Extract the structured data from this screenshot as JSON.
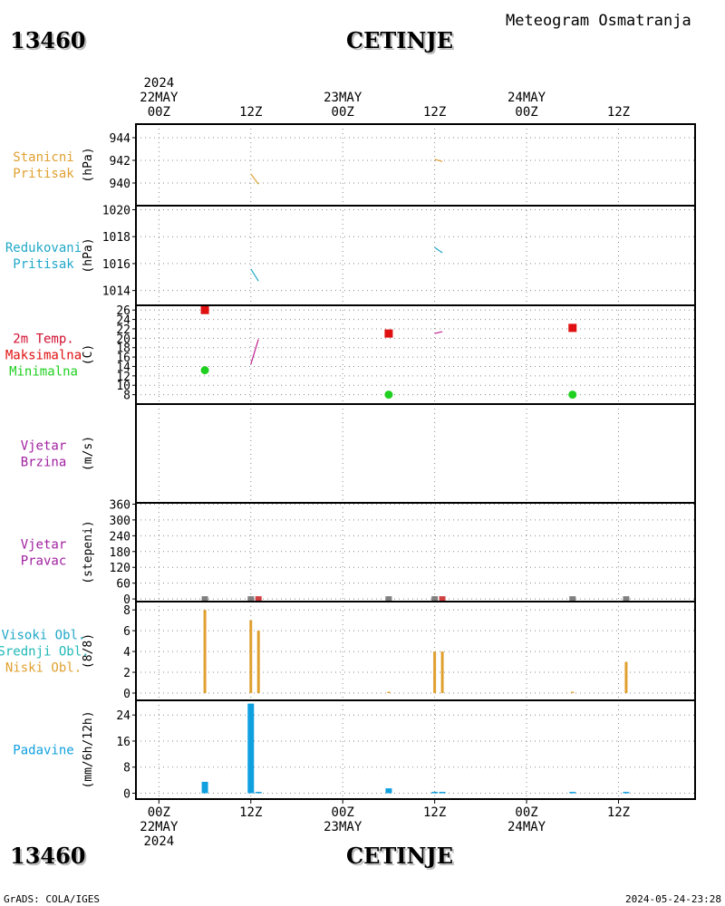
{
  "header": {
    "station_number": "13460",
    "station_name": "CETINJE",
    "product_title": "Meteogram Osmatranja"
  },
  "footer": {
    "station_number": "13460",
    "station_name": "CETINJE",
    "credits": "GrADS: COLA/IGES",
    "timestamp": "2024-05-24-23:28"
  },
  "time_axis": {
    "top": [
      {
        "t": 0,
        "lines": [
          "2024",
          "22MAY",
          "00Z"
        ]
      },
      {
        "t": 12,
        "lines": [
          "12Z"
        ]
      },
      {
        "t": 24,
        "lines": [
          "23MAY",
          "00Z"
        ]
      },
      {
        "t": 36,
        "lines": [
          "12Z"
        ]
      },
      {
        "t": 48,
        "lines": [
          "24MAY",
          "00Z"
        ]
      },
      {
        "t": 60,
        "lines": [
          "12Z"
        ]
      }
    ],
    "bottom": [
      {
        "t": 0,
        "lines": [
          "00Z",
          "22MAY",
          "2024"
        ]
      },
      {
        "t": 12,
        "lines": [
          "12Z"
        ]
      },
      {
        "t": 24,
        "lines": [
          "00Z",
          "23MAY"
        ]
      },
      {
        "t": 36,
        "lines": [
          "12Z"
        ]
      },
      {
        "t": 48,
        "lines": [
          "00Z",
          "24MAY"
        ]
      },
      {
        "t": 60,
        "lines": [
          "12Z"
        ]
      }
    ],
    "range_hours": [
      -3,
      70
    ],
    "unit": "hours since 2024-05-22 00Z"
  },
  "colors": {
    "pressure": "#e0a030",
    "reduced": "#20a8c8",
    "tmax_label": "#d01030",
    "tmax": "#e01010",
    "tmin": "#20d020",
    "wind": "#a020a0",
    "direction_mark": "#808080",
    "direction_mark2": "#d04040",
    "low_cloud": "#e0a030",
    "mid_cloud": "#20b8b8",
    "precip": "#10a0e0",
    "precip_label": "#20a8c8",
    "temp_line": "#c02090"
  },
  "chart_data": [
    {
      "id": "station-pressure",
      "type": "line",
      "labels": [
        {
          "text": "Stanicni",
          "color": "#e0a030"
        },
        {
          "text": "Pritisak",
          "color": "#e0a030"
        }
      ],
      "ylabel": "(hPa)",
      "ylim": [
        938.0,
        945.2
      ],
      "yticks": [
        940,
        942,
        944
      ],
      "series": [
        {
          "kind": "line",
          "color": "#e0a030",
          "points": [
            [
              12,
              940.8
            ],
            [
              13,
              939.9
            ]
          ]
        },
        {
          "kind": "line",
          "color": "#e0a030",
          "points": [
            [
              36,
              942.1
            ],
            [
              37,
              941.9
            ]
          ]
        }
      ]
    },
    {
      "id": "reduced-pressure",
      "type": "line",
      "labels": [
        {
          "text": "Redukovani",
          "color": "#20a8c8"
        },
        {
          "text": "Pritisak",
          "color": "#20a8c8"
        }
      ],
      "ylabel": "(hPa)",
      "ylim": [
        1012.9,
        1020.3
      ],
      "yticks": [
        1014,
        1016,
        1018,
        1020
      ],
      "series": [
        {
          "kind": "line",
          "color": "#20a8c8",
          "points": [
            [
              12,
              1015.6
            ],
            [
              13,
              1014.7
            ]
          ]
        },
        {
          "kind": "line",
          "color": "#20a8c8",
          "points": [
            [
              36,
              1017.2
            ],
            [
              37,
              1016.8
            ]
          ]
        }
      ]
    },
    {
      "id": "temperature",
      "type": "scatter",
      "labels": [
        {
          "text": "2m Temp.",
          "color": "#d01030"
        },
        {
          "text": "Maksimalna",
          "color": "#e01010"
        },
        {
          "text": "Minimalna",
          "color": "#20d020"
        }
      ],
      "ylabel": "(C)",
      "ylim": [
        6.0,
        27.0
      ],
      "yticks": [
        8,
        10,
        12,
        14,
        16,
        18,
        20,
        22,
        24,
        26
      ],
      "series": [
        {
          "kind": "square",
          "name": "Maksimalna",
          "color": "#e01010",
          "points": [
            [
              6,
              26.0
            ],
            [
              30,
              21.0
            ],
            [
              54,
              22.2
            ]
          ]
        },
        {
          "kind": "circle",
          "name": "Minimalna",
          "color": "#20d020",
          "points": [
            [
              6,
              13.2
            ],
            [
              30,
              8.0
            ],
            [
              54,
              8.0
            ]
          ]
        },
        {
          "kind": "line",
          "color": "#c02090",
          "points": [
            [
              12,
              14.5
            ],
            [
              13,
              19.8
            ]
          ]
        },
        {
          "kind": "line",
          "color": "#c02090",
          "points": [
            [
              36,
              21.0
            ],
            [
              37,
              21.4
            ]
          ]
        }
      ]
    },
    {
      "id": "wind-speed",
      "type": "line",
      "labels": [
        {
          "text": "Vjetar",
          "color": "#a020a0"
        },
        {
          "text": "Brzina",
          "color": "#a020a0"
        }
      ],
      "ylabel": "(m/s)",
      "ylim": [
        0,
        10
      ],
      "yticks": [],
      "series": []
    },
    {
      "id": "wind-direction",
      "type": "scatter",
      "labels": [
        {
          "text": "Vjetar",
          "color": "#a020a0"
        },
        {
          "text": "Pravac",
          "color": "#a020a0"
        }
      ],
      "ylabel": "(stepeni)",
      "ylim": [
        -10,
        365
      ],
      "yticks": [
        0,
        60,
        120,
        180,
        240,
        300,
        360
      ],
      "series": [
        {
          "kind": "marker",
          "color": "#808080",
          "points": [
            [
              6,
              0
            ],
            [
              12,
              0
            ],
            [
              30,
              0
            ],
            [
              36,
              0
            ],
            [
              54,
              0
            ],
            [
              61,
              0
            ]
          ]
        },
        {
          "kind": "marker",
          "color": "#d04040",
          "points": [
            [
              13,
              0
            ],
            [
              37,
              0
            ]
          ]
        }
      ]
    },
    {
      "id": "cloud-cover",
      "type": "bar",
      "labels": [
        {
          "text": "Visoki Obl.",
          "color": "#20a8c8"
        },
        {
          "text": "Srednji Obl.",
          "color": "#20b8b8"
        },
        {
          "text": "Niski Obl.",
          "color": "#e0a030"
        }
      ],
      "ylabel": "(8/8)",
      "ylim": [
        -0.7,
        8.8
      ],
      "yticks": [
        0,
        2,
        4,
        6,
        8
      ],
      "series": [
        {
          "kind": "bar",
          "name": "Niski Obl.",
          "color": "#e0a030",
          "points": [
            [
              6,
              8
            ],
            [
              12,
              7
            ],
            [
              13,
              6
            ],
            [
              30,
              0.1
            ],
            [
              36,
              4
            ],
            [
              37,
              4
            ],
            [
              54,
              0.1
            ],
            [
              61,
              3
            ]
          ]
        }
      ]
    },
    {
      "id": "precipitation",
      "type": "bar",
      "labels": [
        {
          "text": "Padavine",
          "color": "#10a0e0"
        }
      ],
      "ylabel": "(mm/6h/12h)",
      "ylim": [
        -1.8,
        28.5
      ],
      "yticks": [
        0,
        8,
        16,
        24
      ],
      "series": [
        {
          "kind": "bar",
          "name": "Padavine",
          "color": "#10a0e0",
          "points": [
            [
              6,
              3.5
            ],
            [
              12,
              27.5
            ],
            [
              13,
              0.4
            ],
            [
              30,
              1.5
            ],
            [
              36,
              0.3
            ],
            [
              37,
              0.3
            ],
            [
              54,
              0.3
            ],
            [
              61,
              0.4
            ]
          ]
        }
      ]
    }
  ]
}
